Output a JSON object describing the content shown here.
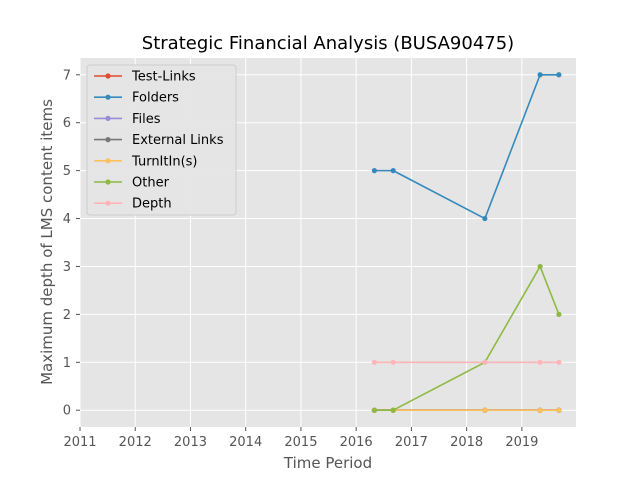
{
  "chart_data": {
    "type": "line",
    "title": "Strategic Financial Analysis (BUSA90475)",
    "xlabel": "Time Period",
    "ylabel": "Maximum depth of LMS content items",
    "xlim": [
      2011,
      2019.98
    ],
    "ylim": [
      -0.35,
      7.35
    ],
    "xticks": [
      2011,
      2012,
      2013,
      2014,
      2015,
      2016,
      2017,
      2018,
      2019
    ],
    "yticks": [
      0,
      1,
      2,
      3,
      4,
      5,
      6,
      7
    ],
    "grid": true,
    "legend_position": "upper-left",
    "x": [
      2016.33,
      2016.67,
      2018.33,
      2019.33,
      2019.67
    ],
    "series": [
      {
        "name": "Test-Links",
        "color": "#e24a33",
        "values": [
          0,
          0,
          0,
          0,
          0
        ]
      },
      {
        "name": "Folders",
        "color": "#348abd",
        "values": [
          5,
          5,
          4,
          7,
          7
        ]
      },
      {
        "name": "Files",
        "color": "#988ed5",
        "values": [
          0,
          0,
          0,
          0,
          0
        ]
      },
      {
        "name": "External Links",
        "color": "#777777",
        "values": [
          0,
          0,
          0,
          0,
          0
        ]
      },
      {
        "name": "TurnItIn(s)",
        "color": "#fbc15e",
        "values": [
          0,
          0,
          0,
          0,
          0
        ]
      },
      {
        "name": "Other",
        "color": "#8eba42",
        "values": [
          0,
          0,
          1,
          3,
          2
        ]
      },
      {
        "name": "Depth",
        "color": "#ffb5b8",
        "values": [
          1,
          1,
          1,
          1,
          1
        ]
      }
    ]
  }
}
